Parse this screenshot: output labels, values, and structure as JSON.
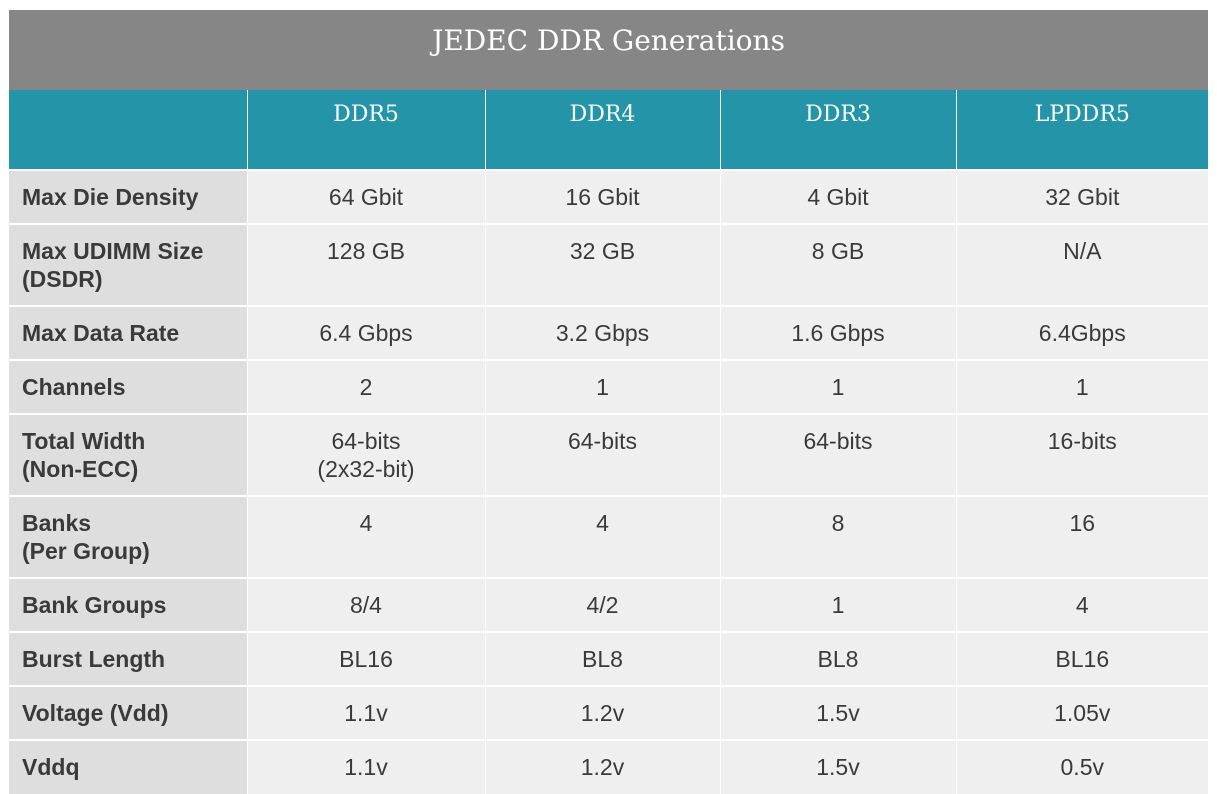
{
  "table": {
    "title": "JEDEC DDR Generations",
    "columns": [
      "",
      "DDR5",
      "DDR4",
      "DDR3",
      "LPDDR5"
    ],
    "rows": [
      {
        "label": "Max Die Density",
        "values": [
          "64 Gbit",
          "16 Gbit",
          "4 Gbit",
          "32 Gbit"
        ]
      },
      {
        "label": "Max UDIMM Size\n(DSDR)",
        "values": [
          "128 GB",
          "32 GB",
          "8 GB",
          "N/A"
        ]
      },
      {
        "label": "Max Data Rate",
        "values": [
          "6.4 Gbps",
          "3.2 Gbps",
          "1.6 Gbps",
          "6.4Gbps"
        ]
      },
      {
        "label": "Channels",
        "values": [
          "2",
          "1",
          "1",
          "1"
        ]
      },
      {
        "label": "Total Width\n(Non-ECC)",
        "values": [
          "64-bits\n(2x32-bit)",
          "64-bits",
          "64-bits",
          "16-bits"
        ]
      },
      {
        "label": "Banks\n(Per Group)",
        "values": [
          "4",
          "4",
          "8",
          "16"
        ]
      },
      {
        "label": "Bank Groups",
        "values": [
          "8/4",
          "4/2",
          "1",
          "4"
        ]
      },
      {
        "label": "Burst Length",
        "values": [
          "BL16",
          "BL8",
          "BL8",
          "BL16"
        ]
      },
      {
        "label": "Voltage (Vdd)",
        "values": [
          "1.1v",
          "1.2v",
          "1.5v",
          "1.05v"
        ]
      },
      {
        "label": "Vddq",
        "values": [
          "1.1v",
          "1.2v",
          "1.5v",
          "0.5v"
        ]
      }
    ]
  }
}
